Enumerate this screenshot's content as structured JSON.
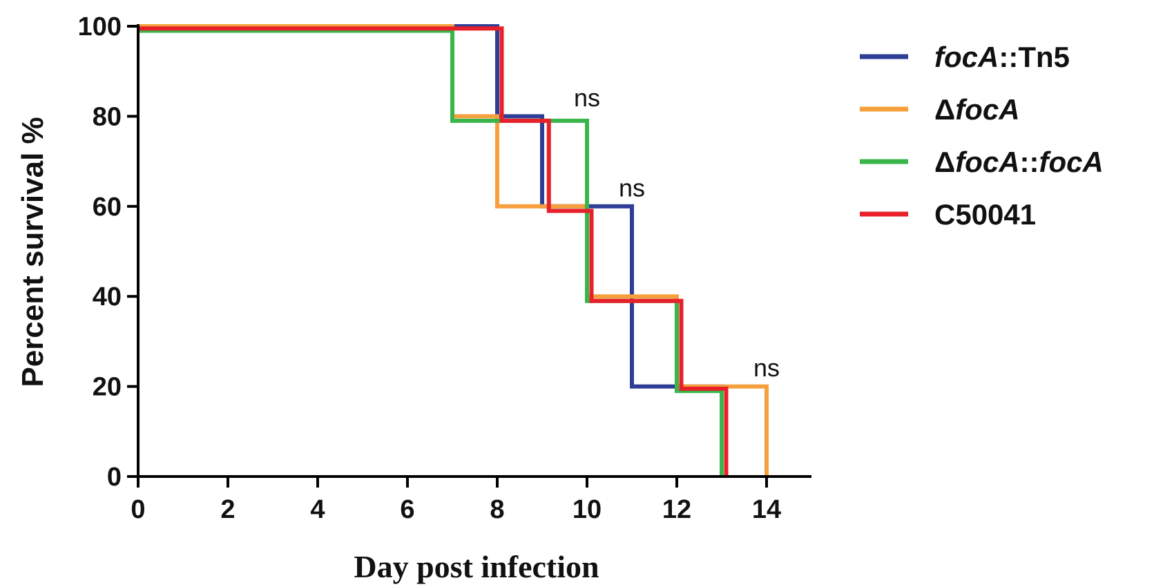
{
  "chart_data": {
    "type": "line",
    "step": true,
    "xlabel": "Day post infection",
    "ylabel": "Percent survival %",
    "xlim": [
      0,
      15
    ],
    "ylim": [
      0,
      100
    ],
    "xticks": [
      0,
      2,
      4,
      6,
      8,
      10,
      12,
      14
    ],
    "yticks": [
      0,
      20,
      40,
      60,
      80,
      100
    ],
    "grid": false,
    "legend_position": "right",
    "series": [
      {
        "name": "focA::Tn5",
        "label_parts": [
          {
            "text": "focA",
            "italic": true
          },
          {
            "text": "::Tn5",
            "italic": false
          }
        ],
        "color": "#2e3d96",
        "x": [
          0,
          8,
          9,
          11,
          13
        ],
        "y": [
          100,
          80,
          60,
          20,
          0
        ]
      },
      {
        "name": "ΔfocA",
        "label_parts": [
          {
            "text": "Δ",
            "italic": false
          },
          {
            "text": "focA",
            "italic": true
          }
        ],
        "color": "#f5a03c",
        "x": [
          0,
          7,
          8,
          10,
          12,
          14
        ],
        "y": [
          100,
          80,
          60,
          40,
          20,
          0
        ]
      },
      {
        "name": "ΔfocA::focA",
        "label_parts": [
          {
            "text": "Δ",
            "italic": false
          },
          {
            "text": "focA",
            "italic": true
          },
          {
            "text": "::",
            "italic": false
          },
          {
            "text": "focA",
            "italic": true
          }
        ],
        "color": "#3ab54a",
        "x": [
          0,
          7,
          10,
          12,
          13
        ],
        "y": [
          99,
          79,
          39,
          19,
          0
        ]
      },
      {
        "name": "C50041",
        "label_parts": [
          {
            "text": "C50041",
            "italic": false
          }
        ],
        "color": "#e8202a",
        "x": [
          0,
          8.1,
          9.15,
          10.1,
          12.1,
          13.1
        ],
        "y": [
          99.5,
          79,
          59,
          39,
          19.5,
          0
        ]
      }
    ],
    "annotations": [
      {
        "text": "ns",
        "x": 10,
        "y": 81
      },
      {
        "text": "ns",
        "x": 11,
        "y": 61
      },
      {
        "text": "ns",
        "x": 14,
        "y": 21
      }
    ]
  }
}
